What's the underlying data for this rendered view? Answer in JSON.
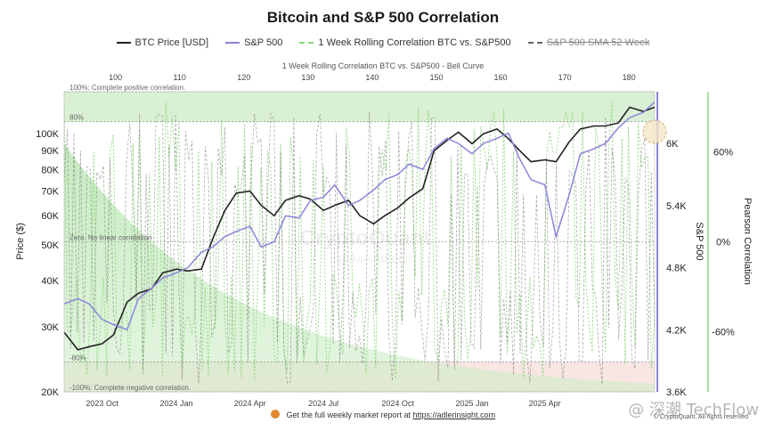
{
  "title": "Bitcoin and S&P 500 Correlation",
  "legend": {
    "btc": "BTC Price [USD]",
    "sp500": "S&P 500",
    "corr": "1 Week Rolling Correlation BTC vs. S&P500",
    "sma": "S&P 500 SMA 52 Week"
  },
  "colors": {
    "btc": "#222222",
    "sp500": "#8a84dc",
    "corr": "#8fd67e",
    "sma": "#555555",
    "positive_band": "#cfeccb",
    "negative_band": "#f4dcd6"
  },
  "top_axis_title": "1 Week Rolling Correlation BTC vs. S&P500 - Bell Curve",
  "watermark": "CryptoQuant",
  "watermark_handle": "@AxelAdlerJr",
  "footer": {
    "text": "Get the full weekly market report at",
    "link": "https://adlerinsight.com"
  },
  "copyright": "© CryptoQuant. All rights reserved",
  "corner_watermark": "@ 深潮 TechFlow",
  "chart_data": {
    "type": "line",
    "x_range": [
      "2023-08-15",
      "2025-08-15"
    ],
    "x_ticks": [
      "2023 Oct",
      "2024 Jan",
      "2024 Apr",
      "2024 Jul",
      "2024 Oct",
      "2025 Jan",
      "2025 Apr"
    ],
    "top_ticks": [
      "100",
      "110",
      "120",
      "130",
      "140",
      "150",
      "160",
      "170",
      "180"
    ],
    "top_axis_range": [
      92,
      184
    ],
    "left_axis": {
      "label": "Price ($)",
      "scale": "log",
      "range": [
        20000,
        130000
      ],
      "ticks": [
        "20K",
        "30K",
        "40K",
        "50K",
        "60K",
        "70K",
        "80K",
        "90K",
        "100K"
      ],
      "tick_values": [
        20000,
        30000,
        40000,
        50000,
        60000,
        70000,
        80000,
        90000,
        100000
      ]
    },
    "right_axis_1": {
      "label": "S&P 500",
      "range": [
        3600,
        6500
      ],
      "ticks": [
        "3.6K",
        "4.2K",
        "4.8K",
        "5.4K",
        "6K"
      ],
      "tick_values": [
        3600,
        4200,
        4800,
        5400,
        6000
      ]
    },
    "right_axis_2": {
      "label": "Pearson Correlation",
      "range": [
        -1,
        1
      ],
      "ticks": [
        "-60%",
        "0%",
        "60%"
      ],
      "tick_values": [
        -0.6,
        0,
        0.6
      ]
    },
    "reference_lines": [
      {
        "value": 1.0,
        "label": "100%: Complete positive correlation."
      },
      {
        "value": 0.8,
        "label": "80%"
      },
      {
        "value": 0.0,
        "label": "Zero. No linear correlation"
      },
      {
        "value": -0.8,
        "label": "-80%"
      },
      {
        "value": -1.0,
        "label": "-100%: Complete negative correlation."
      }
    ],
    "series": [
      {
        "name": "BTC Price [USD]",
        "axis": "left",
        "x": [
          "2023-08-15",
          "2023-09-01",
          "2023-09-15",
          "2023-10-01",
          "2023-10-15",
          "2023-11-01",
          "2023-11-15",
          "2023-12-01",
          "2023-12-15",
          "2024-01-01",
          "2024-01-15",
          "2024-02-01",
          "2024-02-15",
          "2024-03-01",
          "2024-03-15",
          "2024-04-01",
          "2024-04-15",
          "2024-05-01",
          "2024-05-15",
          "2024-06-01",
          "2024-06-15",
          "2024-07-01",
          "2024-07-15",
          "2024-08-01",
          "2024-08-15",
          "2024-09-01",
          "2024-09-15",
          "2024-10-01",
          "2024-10-15",
          "2024-11-01",
          "2024-11-15",
          "2024-12-01",
          "2024-12-15",
          "2025-01-01",
          "2025-01-15",
          "2025-02-01",
          "2025-02-15",
          "2025-03-01",
          "2025-03-15",
          "2025-04-01",
          "2025-04-15",
          "2025-05-01",
          "2025-05-15",
          "2025-06-01",
          "2025-06-15",
          "2025-07-01",
          "2025-07-15",
          "2025-08-01",
          "2025-08-15"
        ],
        "values": [
          29000,
          26000,
          26500,
          27000,
          28500,
          35000,
          37000,
          38000,
          42000,
          43000,
          42500,
          43000,
          52000,
          62000,
          69000,
          70000,
          64000,
          60000,
          66000,
          68000,
          66500,
          62000,
          64000,
          66000,
          60000,
          57000,
          60000,
          63000,
          67000,
          71000,
          90000,
          96000,
          101000,
          94000,
          100000,
          103000,
          97000,
          90000,
          84000,
          85000,
          84000,
          95000,
          103000,
          105000,
          105000,
          107000,
          118000,
          115000,
          118000
        ]
      },
      {
        "name": "S&P 500",
        "axis": "right_1",
        "x": [
          "2023-08-15",
          "2023-09-01",
          "2023-09-15",
          "2023-10-01",
          "2023-10-15",
          "2023-11-01",
          "2023-11-15",
          "2023-12-01",
          "2023-12-15",
          "2024-01-01",
          "2024-01-15",
          "2024-02-01",
          "2024-02-15",
          "2024-03-01",
          "2024-03-15",
          "2024-04-01",
          "2024-04-15",
          "2024-05-01",
          "2024-05-15",
          "2024-06-01",
          "2024-06-15",
          "2024-07-01",
          "2024-07-15",
          "2024-08-01",
          "2024-08-15",
          "2024-09-01",
          "2024-09-15",
          "2024-10-01",
          "2024-10-15",
          "2024-11-01",
          "2024-11-15",
          "2024-12-01",
          "2024-12-15",
          "2025-01-01",
          "2025-01-15",
          "2025-02-01",
          "2025-02-15",
          "2025-03-01",
          "2025-03-15",
          "2025-04-01",
          "2025-04-15",
          "2025-05-01",
          "2025-05-15",
          "2025-06-01",
          "2025-06-15",
          "2025-07-01",
          "2025-07-15",
          "2025-08-01",
          "2025-08-15"
        ],
        "values": [
          4450,
          4500,
          4450,
          4300,
          4250,
          4200,
          4500,
          4600,
          4700,
          4750,
          4800,
          4950,
          5000,
          5100,
          5150,
          5200,
          5000,
          5050,
          5300,
          5280,
          5450,
          5480,
          5600,
          5400,
          5450,
          5550,
          5650,
          5700,
          5800,
          5750,
          5950,
          6050,
          6000,
          5900,
          6000,
          6050,
          6100,
          5850,
          5650,
          5600,
          5100,
          5500,
          5900,
          5950,
          6000,
          6150,
          6250,
          6300,
          6400
        ]
      }
    ]
  }
}
